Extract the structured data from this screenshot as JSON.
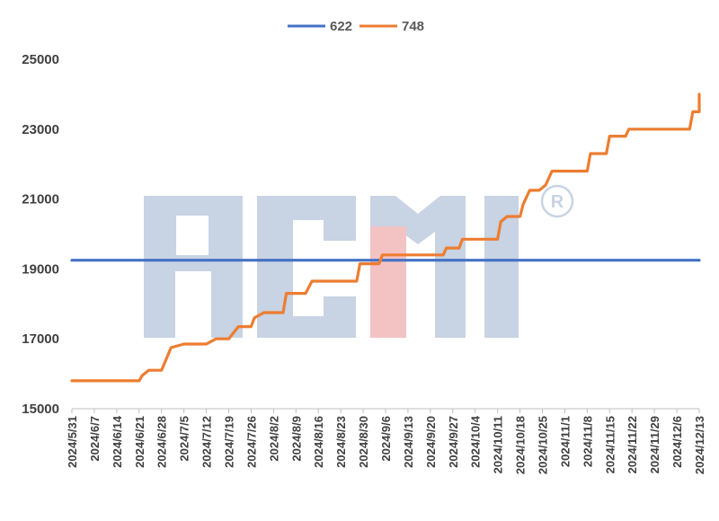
{
  "chart_data": {
    "type": "line",
    "title": "",
    "xlabel": "",
    "ylabel": "",
    "ylim": [
      15000,
      25000
    ],
    "yticks": [
      15000,
      17000,
      19000,
      21000,
      23000,
      25000
    ],
    "ytick_labels": [
      "15000",
      "17000",
      "19000",
      "21000",
      "23000",
      "25000"
    ],
    "categories": [
      "2024/5/31",
      "2024/6/7",
      "2024/6/14",
      "2024/6/21",
      "2024/6/28",
      "2024/7/5",
      "2024/7/12",
      "2024/7/19",
      "2024/7/26",
      "2024/8/2",
      "2024/8/9",
      "2024/8/16",
      "2024/8/23",
      "2024/8/30",
      "2024/9/6",
      "2024/9/13",
      "2024/9/20",
      "2024/9/27",
      "2024/10/4",
      "2024/10/11",
      "2024/10/18",
      "2024/10/25",
      "2024/11/1",
      "2024/11/8",
      "2024/11/15",
      "2024/11/22",
      "2024/11/29",
      "2024/12/6",
      "2024/12/13"
    ],
    "legend_position": "top",
    "grid": false,
    "series": [
      {
        "name": "622",
        "color": "#4472c4",
        "points": [
          [
            "2024/5/31",
            19250
          ],
          [
            "2024/12/13",
            19250
          ]
        ]
      },
      {
        "name": "748",
        "color": "#ed7d31",
        "points": [
          [
            "2024/5/31",
            15800
          ],
          [
            "2024/6/21",
            15800
          ],
          [
            "2024/6/22",
            15950
          ],
          [
            "2024/6/24",
            16100
          ],
          [
            "2024/6/28",
            16100
          ],
          [
            "2024/7/1",
            16750
          ],
          [
            "2024/7/3",
            16800
          ],
          [
            "2024/7/5",
            16850
          ],
          [
            "2024/7/12",
            16850
          ],
          [
            "2024/7/15",
            17000
          ],
          [
            "2024/7/19",
            17000
          ],
          [
            "2024/7/22",
            17350
          ],
          [
            "2024/7/26",
            17350
          ],
          [
            "2024/7/27",
            17600
          ],
          [
            "2024/7/30",
            17750
          ],
          [
            "2024/8/5",
            17750
          ],
          [
            "2024/8/6",
            18300
          ],
          [
            "2024/8/12",
            18300
          ],
          [
            "2024/8/14",
            18650
          ],
          [
            "2024/8/28",
            18650
          ],
          [
            "2024/8/29",
            19150
          ],
          [
            "2024/9/4",
            19150
          ],
          [
            "2024/9/5",
            19400
          ],
          [
            "2024/9/24",
            19400
          ],
          [
            "2024/9/25",
            19600
          ],
          [
            "2024/9/29",
            19600
          ],
          [
            "2024/9/30",
            19850
          ],
          [
            "2024/10/11",
            19850
          ],
          [
            "2024/10/12",
            20350
          ],
          [
            "2024/10/14",
            20500
          ],
          [
            "2024/10/18",
            20500
          ],
          [
            "2024/10/19",
            20850
          ],
          [
            "2024/10/21",
            21250
          ],
          [
            "2024/10/24",
            21250
          ],
          [
            "2024/10/26",
            21400
          ],
          [
            "2024/10/28",
            21800
          ],
          [
            "2024/11/8",
            21800
          ],
          [
            "2024/11/9",
            22300
          ],
          [
            "2024/11/14",
            22300
          ],
          [
            "2024/11/15",
            22800
          ],
          [
            "2024/11/20",
            22800
          ],
          [
            "2024/11/21",
            23000
          ],
          [
            "2024/12/10",
            23000
          ],
          [
            "2024/12/11",
            23500
          ],
          [
            "2024/12/19",
            23500
          ],
          [
            "2024/12/20",
            24000
          ],
          [
            "2024/12/23",
            24000
          ]
        ]
      }
    ]
  }
}
